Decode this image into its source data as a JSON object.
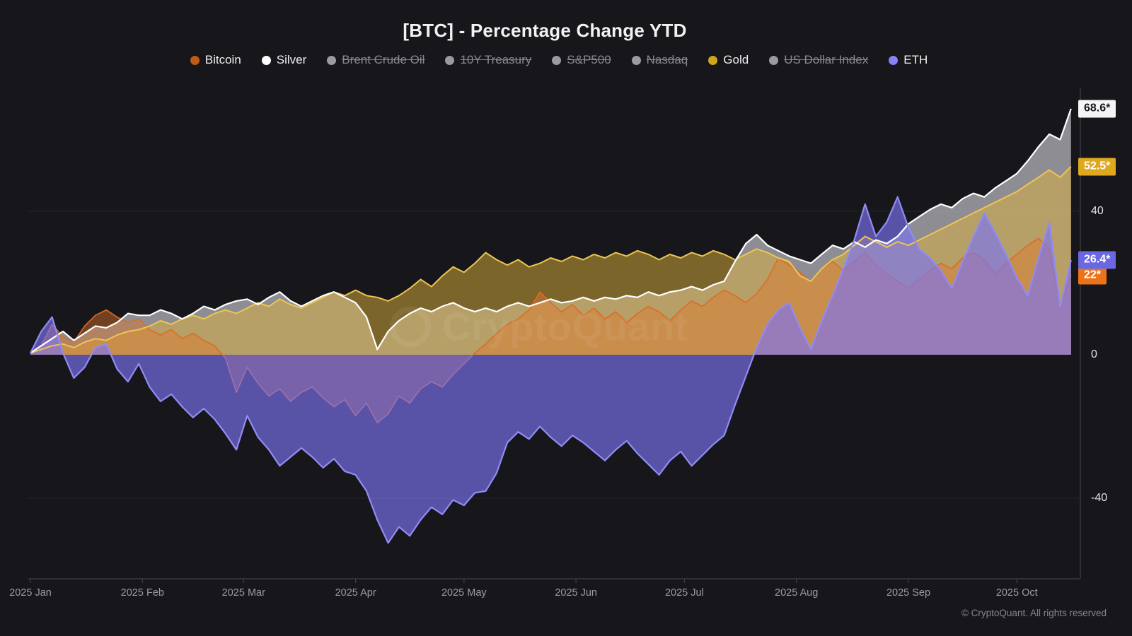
{
  "title": "[BTC] - Percentage Change YTD",
  "watermark_text": "CryptoQuant",
  "footer_text": "© CryptoQuant. All rights reserved",
  "colors": {
    "background": "#17171b",
    "axis": "#3f3f46",
    "grid": "#232329",
    "x_label": "#9b9ba3",
    "y_label": "#e4e4e8"
  },
  "legend": [
    {
      "label": "Bitcoin",
      "color": "#bf5a17",
      "active": true
    },
    {
      "label": "Silver",
      "color": "#ffffff",
      "active": true
    },
    {
      "label": "Brent Crude Oil",
      "color": "#9a9aa2",
      "active": false
    },
    {
      "label": "10Y Treasury",
      "color": "#9a9aa2",
      "active": false
    },
    {
      "label": "S&P500",
      "color": "#9a9aa2",
      "active": false
    },
    {
      "label": "Nasdaq",
      "color": "#9a9aa2",
      "active": false
    },
    {
      "label": "Gold",
      "color": "#d2a51c",
      "active": true
    },
    {
      "label": "US Dollar Index",
      "color": "#9a9aa2",
      "active": false
    },
    {
      "label": "ETH",
      "color": "#8781f3",
      "active": true
    }
  ],
  "chart_data": {
    "type": "area",
    "title": "[BTC] - Percentage Change YTD",
    "x_unit": "day of 2025 (Jan 1 = 0)",
    "y_unit": "percent change YTD",
    "ylim": [
      -58,
      73
    ],
    "yticks": [
      40,
      0,
      -40
    ],
    "ytick_labels": [
      "40",
      "0",
      "-40"
    ],
    "grid_values": [
      40,
      -40
    ],
    "months": [
      {
        "day": 0,
        "label": "2025 Jan"
      },
      {
        "day": 31,
        "label": "2025 Feb"
      },
      {
        "day": 59,
        "label": "2025 Mar"
      },
      {
        "day": 90,
        "label": "2025 Apr"
      },
      {
        "day": 120,
        "label": "2025 May"
      },
      {
        "day": 151,
        "label": "2025 Jun"
      },
      {
        "day": 181,
        "label": "2025 Jul"
      },
      {
        "day": 212,
        "label": "2025 Aug"
      },
      {
        "day": 243,
        "label": "2025 Sep"
      },
      {
        "day": 273,
        "label": "2025 Oct"
      }
    ],
    "days": [
      0,
      3,
      6,
      9,
      12,
      15,
      18,
      21,
      24,
      27,
      30,
      33,
      36,
      39,
      42,
      45,
      48,
      51,
      54,
      57,
      60,
      63,
      66,
      69,
      72,
      75,
      78,
      81,
      84,
      87,
      90,
      93,
      96,
      99,
      102,
      105,
      108,
      111,
      114,
      117,
      120,
      123,
      126,
      129,
      132,
      135,
      138,
      141,
      144,
      147,
      150,
      153,
      156,
      159,
      162,
      165,
      168,
      171,
      174,
      177,
      180,
      183,
      186,
      189,
      192,
      195,
      198,
      201,
      204,
      207,
      210,
      213,
      216,
      219,
      222,
      225,
      228,
      231,
      234,
      237,
      240,
      243,
      246,
      249,
      252,
      255,
      258,
      261,
      264,
      267,
      270,
      273,
      276,
      279,
      282,
      285,
      288
    ],
    "series": [
      {
        "name": "Silver",
        "end_value": 68.6,
        "end_label": "68.6*",
        "line_color": "#ffffff",
        "fill_color": "#dcdce4",
        "fill_alpha": 0.6,
        "line_width": 2.2,
        "badge_bg": "#f5f5f5",
        "badge_text": "#17171b",
        "values": [
          0.5,
          2.5,
          4.5,
          6.5,
          4,
          6,
          8,
          7.5,
          9,
          11.5,
          11,
          11,
          12.5,
          11.5,
          10,
          11.5,
          13.5,
          12.5,
          14,
          15,
          15.5,
          14,
          16,
          17.5,
          15,
          13.5,
          15,
          16.5,
          17.5,
          16,
          14.5,
          10.5,
          1.5,
          6.5,
          9.5,
          11.5,
          13,
          12,
          13.5,
          14.5,
          13,
          12,
          13,
          12,
          13.5,
          14.5,
          13.5,
          14.5,
          15.5,
          14.5,
          15,
          16,
          15,
          16,
          15.5,
          16.5,
          16,
          17.5,
          16.5,
          17.5,
          18,
          19,
          18,
          19.5,
          20.5,
          26,
          31,
          33.5,
          30.5,
          29,
          27.5,
          26.5,
          25.5,
          28,
          30.5,
          29.5,
          31.5,
          30,
          32,
          31,
          33,
          36.5,
          38.5,
          40.5,
          42,
          41,
          43.5,
          45,
          44,
          46.5,
          48.5,
          50.5,
          54,
          58,
          61.5,
          60,
          68.6
        ]
      },
      {
        "name": "Gold",
        "end_value": 52.5,
        "end_label": "52.5*",
        "line_color": "#ecc653",
        "fill_color": "#e2b33c",
        "fill_alpha": 0.5,
        "line_width": 2,
        "badge_bg": "#dfa91f",
        "badge_text": "#ffffff",
        "values": [
          0.5,
          1.5,
          2.5,
          3,
          2,
          3.5,
          4.5,
          4,
          5.5,
          6.5,
          7,
          8,
          9.5,
          8.5,
          10,
          11,
          10,
          11.5,
          12.5,
          11.5,
          13,
          14.5,
          13.5,
          15.5,
          14,
          13,
          14.5,
          16,
          17.5,
          16.5,
          18,
          16.5,
          16,
          15,
          16.5,
          18.5,
          21,
          19,
          22,
          24.5,
          23,
          25.5,
          28.5,
          26.5,
          25,
          26.5,
          24.5,
          25.5,
          27,
          26,
          27.5,
          26.5,
          28,
          27,
          28.5,
          27.5,
          29,
          28,
          26.5,
          28,
          27,
          28.5,
          27.5,
          29,
          28,
          26.5,
          28,
          29.5,
          28.5,
          27,
          26,
          22,
          20.5,
          24,
          26.5,
          28,
          30.5,
          33,
          31.5,
          30,
          31.5,
          30.5,
          32,
          33.5,
          35,
          36.5,
          38,
          39.5,
          41,
          42.5,
          44,
          45.5,
          47.5,
          49.5,
          51.5,
          49.5,
          52.5
        ]
      },
      {
        "name": "Bitcoin",
        "end_value": 22,
        "end_label": "22*",
        "line_color": "#db6c28",
        "fill_color": "#e0752c",
        "fill_alpha": 0.45,
        "line_width": 1.6,
        "badge_bg": "#ec7317",
        "badge_text": "#ffffff",
        "values": [
          0.5,
          2.5,
          8.5,
          5,
          3.5,
          8,
          11,
          12.5,
          10.5,
          9,
          10,
          7,
          5.5,
          7,
          4.5,
          6,
          4,
          2.5,
          -1,
          -10.5,
          -3.5,
          -8,
          -11.5,
          -9.5,
          -13,
          -10.5,
          -9,
          -12,
          -14.5,
          -12.5,
          -17,
          -13.5,
          -19,
          -16.5,
          -11.5,
          -13.5,
          -9.5,
          -7.5,
          -9,
          -5.5,
          -2.5,
          0.5,
          3,
          6,
          8.5,
          10,
          12.5,
          17.5,
          14.5,
          12,
          14,
          11,
          13,
          10,
          12,
          9,
          11.5,
          13.5,
          12,
          9.5,
          12.5,
          15,
          13.5,
          16,
          18,
          16.5,
          14.5,
          17,
          21,
          27,
          25,
          23,
          20.5,
          24,
          26,
          23.5,
          26,
          28.5,
          25,
          22.5,
          20.5,
          18.5,
          21,
          23.5,
          25.5,
          24,
          27,
          28.5,
          26.5,
          22.5,
          25.5,
          28,
          30.5,
          32.5,
          29.5,
          14,
          22
        ]
      },
      {
        "name": "ETH",
        "end_value": 26.4,
        "end_label": "26.4*",
        "line_color": "#918bf5",
        "fill_color": "#7d73f2",
        "fill_alpha": 0.66,
        "line_width": 2.2,
        "badge_bg": "#6a67e2",
        "badge_text": "#ffffff",
        "values": [
          0.5,
          6.5,
          10.5,
          0.5,
          -6.5,
          -3.5,
          2,
          3,
          -4,
          -7.5,
          -2.5,
          -9,
          -13,
          -11,
          -14.5,
          -17.5,
          -15,
          -18,
          -22,
          -26.5,
          -17,
          -23,
          -26.5,
          -31,
          -28.5,
          -26,
          -28.5,
          -31.5,
          -29,
          -32.5,
          -33.5,
          -38,
          -46,
          -52.5,
          -48,
          -50.5,
          -46,
          -42.5,
          -44.5,
          -40.5,
          -42,
          -38.5,
          -38,
          -33,
          -24.5,
          -21.5,
          -23.5,
          -20,
          -23,
          -25.5,
          -22.5,
          -24.5,
          -27,
          -29.5,
          -26.5,
          -24,
          -27.5,
          -30.5,
          -33.5,
          -29.5,
          -27,
          -31,
          -28,
          -25,
          -22.5,
          -14,
          -6,
          2,
          8.5,
          12.5,
          14.5,
          7.5,
          1.5,
          9.5,
          16.5,
          24,
          32,
          42,
          33,
          37,
          44,
          35.5,
          29.5,
          27,
          23.5,
          18.5,
          26,
          33,
          39.5,
          34,
          28,
          21.5,
          16.5,
          27,
          37,
          13.5,
          26.4
        ]
      }
    ]
  }
}
